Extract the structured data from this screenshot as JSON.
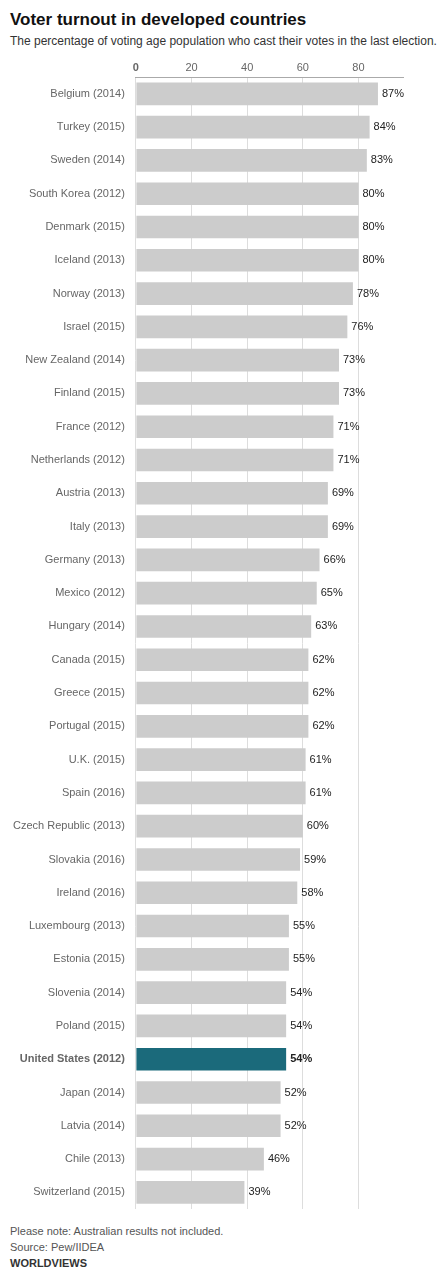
{
  "chart_data": {
    "type": "bar",
    "orientation": "horizontal",
    "title": "Voter turnout in developed countries",
    "subtitle": "The percentage of voting age population who cast their votes in the last election.",
    "categories": [
      "Belgium (2014)",
      "Turkey (2015)",
      "Sweden (2014)",
      "South Korea (2012)",
      "Denmark (2015)",
      "Iceland (2013)",
      "Norway (2013)",
      "Israel (2015)",
      "New Zealand (2014)",
      "Finland (2015)",
      "France (2012)",
      "Netherlands (2012)",
      "Austria (2013)",
      "Italy (2013)",
      "Germany (2013)",
      "Mexico (2012)",
      "Hungary (2014)",
      "Canada (2015)",
      "Greece (2015)",
      "Portugal (2015)",
      "U.K. (2015)",
      "Spain (2016)",
      "Czech Republic (2013)",
      "Slovakia (2016)",
      "Ireland (2016)",
      "Luxembourg (2013)",
      "Estonia (2015)",
      "Slovenia (2014)",
      "Poland (2015)",
      "United States (2012)",
      "Japan (2014)",
      "Latvia (2014)",
      "Chile (2013)",
      "Switzerland (2015)"
    ],
    "values": [
      87,
      84,
      83,
      80,
      80,
      80,
      78,
      76,
      73,
      73,
      71,
      71,
      69,
      69,
      66,
      65,
      63,
      62,
      62,
      62,
      61,
      61,
      60,
      59,
      58,
      55,
      55,
      54,
      54,
      54,
      52,
      52,
      46,
      39
    ],
    "value_labels": [
      "87%",
      "84%",
      "83%",
      "80%",
      "80%",
      "80%",
      "78%",
      "76%",
      "73%",
      "73%",
      "71%",
      "71%",
      "69%",
      "69%",
      "66%",
      "65%",
      "63%",
      "62%",
      "62%",
      "62%",
      "61%",
      "61%",
      "60%",
      "59%",
      "58%",
      "55%",
      "55%",
      "54%",
      "54%",
      "54%",
      "52%",
      "52%",
      "46%",
      "39%"
    ],
    "data_labels": true,
    "colors": [
      "#CCCCCC",
      "#CCCCCC",
      "#CCCCCC",
      "#CCCCCC",
      "#CCCCCC",
      "#CCCCCC",
      "#CCCCCC",
      "#CCCCCC",
      "#CCCCCC",
      "#CCCCCC",
      "#CCCCCC",
      "#CCCCCC",
      "#CCCCCC",
      "#CCCCCC",
      "#CCCCCC",
      "#CCCCCC",
      "#CCCCCC",
      "#CCCCCC",
      "#CCCCCC",
      "#CCCCCC",
      "#CCCCCC",
      "#CCCCCC",
      "#CCCCCC",
      "#CCCCCC",
      "#CCCCCC",
      "#CCCCCC",
      "#CCCCCC",
      "#CCCCCC",
      "#CCCCCC",
      "#1B6A7B",
      "#CCCCCC",
      "#CCCCCC",
      "#CCCCCC",
      "#CCCCCC"
    ],
    "xlim": [
      0,
      96
    ],
    "xticks": [
      0,
      20,
      40,
      60,
      80
    ],
    "grid": true,
    "annotations": [
      "Please note: Australian results not included.",
      "Source: Pew/IIDEA",
      "WORLDVIEWS"
    ]
  }
}
